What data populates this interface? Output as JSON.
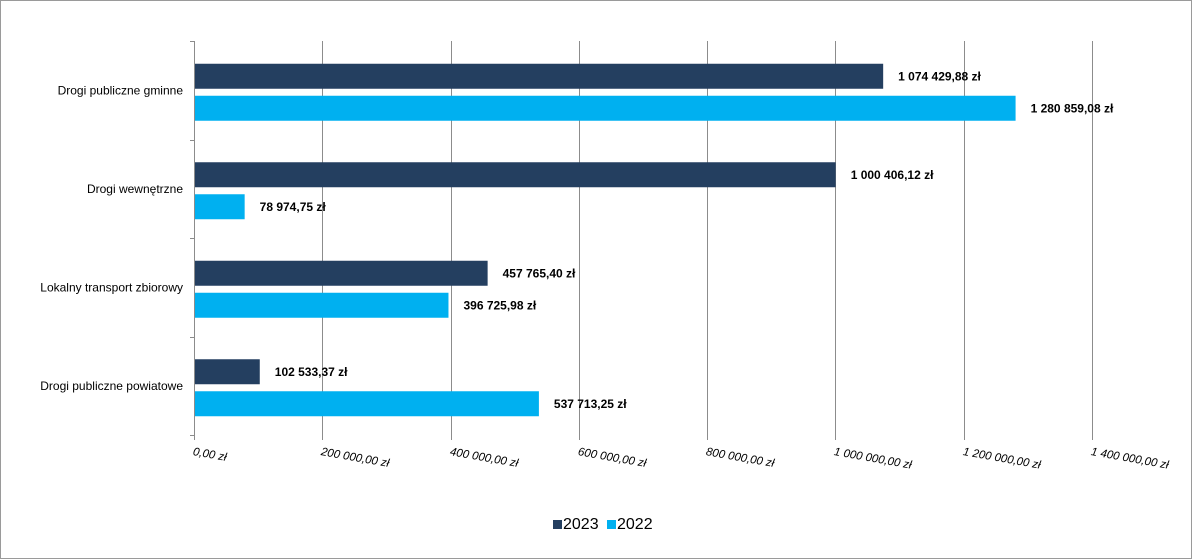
{
  "chart_data": {
    "type": "bar",
    "orientation": "horizontal",
    "categories": [
      "Drogi publiczne gminne",
      "Drogi wewnętrzne",
      "Lokalny transport zbiorowy",
      "Drogi publiczne powiatowe"
    ],
    "series": [
      {
        "name": "2023",
        "color": "#243f60",
        "values": [
          1074429.88,
          1000406.12,
          457765.4,
          102533.37
        ],
        "labels": [
          "1 074 429,88  zł",
          "1 000 406,12  zł",
          "457 765,40  zł",
          "102 533,37  zł"
        ]
      },
      {
        "name": "2022",
        "color": "#00b0f0",
        "values": [
          1280859.08,
          78974.75,
          396725.98,
          537713.25
        ],
        "labels": [
          "1 280 859,08  zł",
          "78 974,75  zł",
          "396 725,98  zł",
          "537 713,25  zł"
        ]
      }
    ],
    "xlim": [
      0,
      1400000
    ],
    "x_ticks": [
      0,
      200000,
      400000,
      600000,
      800000,
      1000000,
      1200000,
      1400000
    ],
    "x_tick_labels": [
      "0,00 zł",
      "200 000,00 zł",
      "400 000,00 zł",
      "600 000,00 zł",
      "800 000,00 zł",
      "1 000 000,00 zł",
      "1 200 000,00 zł",
      "1 400 000,00 zł"
    ],
    "title": "",
    "xlabel": "",
    "ylabel": "",
    "grid": "vertical",
    "legend_position": "bottom",
    "legend": [
      "2023",
      "2022"
    ]
  }
}
